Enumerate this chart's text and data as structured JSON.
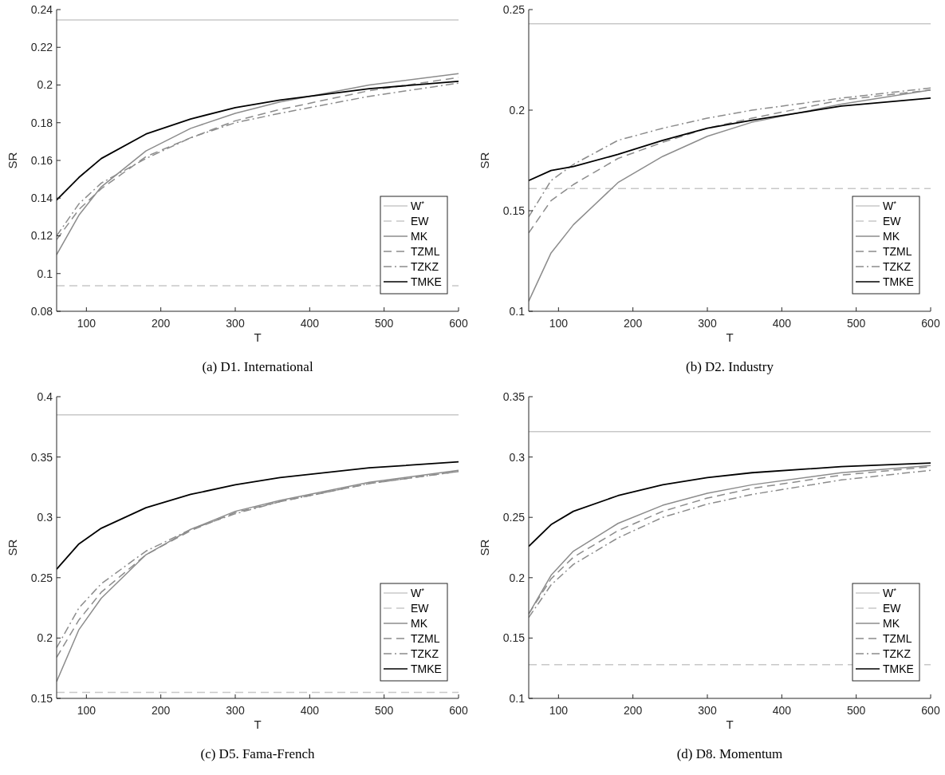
{
  "chart_data": [
    {
      "type": "line",
      "title": "(a) D1. International",
      "xlabel": "T",
      "ylabel": "SR",
      "xlim": [
        60,
        600
      ],
      "xticks": [
        100,
        200,
        300,
        400,
        500,
        600
      ],
      "ylim": [
        0.08,
        0.24
      ],
      "yticks": [
        0.08,
        0.1,
        0.12,
        0.14,
        0.16,
        0.18,
        0.2,
        0.22,
        0.24
      ],
      "grid": false,
      "legend": "bottom right",
      "x": [
        60,
        90,
        120,
        180,
        240,
        300,
        360,
        480,
        600
      ],
      "series": [
        {
          "name": "W$^{*}$",
          "color": "#c8c8c8",
          "line_style": "solid",
          "values": [
            0.2345,
            0.2345,
            0.2345,
            0.2345,
            0.2345,
            0.2345,
            0.2345,
            0.2345,
            0.2345
          ]
        },
        {
          "name": "EW",
          "color": "#c8c8c8",
          "line_style": "dashed",
          "values": [
            0.0935,
            0.0935,
            0.0935,
            0.0935,
            0.0935,
            0.0935,
            0.0935,
            0.0935,
            0.0935
          ]
        },
        {
          "name": "MK",
          "color": "#8c8c8c",
          "line_style": "solid",
          "values": [
            0.11,
            0.131,
            0.146,
            0.165,
            0.177,
            0.185,
            0.191,
            0.2,
            0.206
          ]
        },
        {
          "name": "TZML",
          "color": "#8c8c8c",
          "line_style": "dashed",
          "values": [
            0.118,
            0.134,
            0.145,
            0.162,
            0.172,
            0.181,
            0.187,
            0.197,
            0.204
          ]
        },
        {
          "name": "TZKZ",
          "color": "#8c8c8c",
          "line_style": "dashdot",
          "values": [
            0.12,
            0.137,
            0.148,
            0.161,
            0.172,
            0.18,
            0.185,
            0.194,
            0.201
          ]
        },
        {
          "name": "TMKE",
          "color": "#000000",
          "line_style": "solid",
          "values": [
            0.139,
            0.151,
            0.161,
            0.174,
            0.182,
            0.188,
            0.192,
            0.198,
            0.202
          ]
        }
      ]
    },
    {
      "type": "line",
      "title": "(b) D2. Industry",
      "xlabel": "T",
      "ylabel": "SR",
      "xlim": [
        60,
        600
      ],
      "xticks": [
        100,
        200,
        300,
        400,
        500,
        600
      ],
      "ylim": [
        0.1,
        0.25
      ],
      "yticks": [
        0.1,
        0.15,
        0.2,
        0.25
      ],
      "grid": false,
      "legend": "bottom right",
      "x": [
        60,
        90,
        120,
        180,
        240,
        300,
        360,
        480,
        600
      ],
      "series": [
        {
          "name": "W$^{*}$",
          "color": "#c8c8c8",
          "line_style": "solid",
          "values": [
            0.243,
            0.243,
            0.243,
            0.243,
            0.243,
            0.243,
            0.243,
            0.243,
            0.243
          ]
        },
        {
          "name": "EW",
          "color": "#c8c8c8",
          "line_style": "dashed",
          "values": [
            0.161,
            0.161,
            0.161,
            0.161,
            0.161,
            0.161,
            0.161,
            0.161,
            0.161
          ]
        },
        {
          "name": "MK",
          "color": "#8c8c8c",
          "line_style": "solid",
          "values": [
            0.105,
            0.129,
            0.143,
            0.164,
            0.177,
            0.187,
            0.194,
            0.203,
            0.21
          ]
        },
        {
          "name": "TZML",
          "color": "#8c8c8c",
          "line_style": "dashed",
          "values": [
            0.139,
            0.155,
            0.163,
            0.176,
            0.184,
            0.191,
            0.196,
            0.205,
            0.21
          ]
        },
        {
          "name": "TZKZ",
          "color": "#8c8c8c",
          "line_style": "dashdot",
          "values": [
            0.147,
            0.165,
            0.173,
            0.185,
            0.191,
            0.196,
            0.2,
            0.206,
            0.211
          ]
        },
        {
          "name": "TMKE",
          "color": "#000000",
          "line_style": "solid",
          "values": [
            0.165,
            0.17,
            0.172,
            0.178,
            0.185,
            0.191,
            0.195,
            0.202,
            0.206
          ]
        }
      ]
    },
    {
      "type": "line",
      "title": "(c) D5. Fama-French",
      "xlabel": "T",
      "ylabel": "SR",
      "xlim": [
        60,
        600
      ],
      "xticks": [
        100,
        200,
        300,
        400,
        500,
        600
      ],
      "ylim": [
        0.15,
        0.4
      ],
      "yticks": [
        0.15,
        0.2,
        0.25,
        0.3,
        0.35,
        0.4
      ],
      "grid": false,
      "legend": "bottom right",
      "x": [
        60,
        90,
        120,
        180,
        240,
        300,
        360,
        480,
        600
      ],
      "series": [
        {
          "name": "W$^{*}$",
          "color": "#c8c8c8",
          "line_style": "solid",
          "values": [
            0.385,
            0.385,
            0.385,
            0.385,
            0.385,
            0.385,
            0.385,
            0.385,
            0.385
          ]
        },
        {
          "name": "EW",
          "color": "#c8c8c8",
          "line_style": "dashed",
          "values": [
            0.155,
            0.155,
            0.155,
            0.155,
            0.155,
            0.155,
            0.155,
            0.155,
            0.155
          ]
        },
        {
          "name": "MK",
          "color": "#8c8c8c",
          "line_style": "solid",
          "values": [
            0.164,
            0.207,
            0.233,
            0.269,
            0.29,
            0.305,
            0.314,
            0.329,
            0.339
          ]
        },
        {
          "name": "TZML",
          "color": "#8c8c8c",
          "line_style": "dashed",
          "values": [
            0.184,
            0.215,
            0.238,
            0.269,
            0.289,
            0.304,
            0.313,
            0.328,
            0.338
          ]
        },
        {
          "name": "TZKZ",
          "color": "#8c8c8c",
          "line_style": "dashdot",
          "values": [
            0.192,
            0.225,
            0.245,
            0.272,
            0.29,
            0.303,
            0.313,
            0.328,
            0.338
          ]
        },
        {
          "name": "TMKE",
          "color": "#000000",
          "line_style": "solid",
          "values": [
            0.257,
            0.278,
            0.291,
            0.308,
            0.319,
            0.327,
            0.333,
            0.341,
            0.346
          ]
        }
      ]
    },
    {
      "type": "line",
      "title": "(d) D8. Momentum",
      "xlabel": "T",
      "ylabel": "SR",
      "xlim": [
        60,
        600
      ],
      "xticks": [
        100,
        200,
        300,
        400,
        500,
        600
      ],
      "ylim": [
        0.1,
        0.35
      ],
      "yticks": [
        0.1,
        0.15,
        0.2,
        0.25,
        0.3,
        0.35
      ],
      "grid": false,
      "legend": "bottom right",
      "x": [
        60,
        90,
        120,
        180,
        240,
        300,
        360,
        480,
        600
      ],
      "series": [
        {
          "name": "W$^{*}$",
          "color": "#c8c8c8",
          "line_style": "solid",
          "values": [
            0.321,
            0.321,
            0.321,
            0.321,
            0.321,
            0.321,
            0.321,
            0.321,
            0.321
          ]
        },
        {
          "name": "EW",
          "color": "#c8c8c8",
          "line_style": "dashed",
          "values": [
            0.128,
            0.128,
            0.128,
            0.128,
            0.128,
            0.128,
            0.128,
            0.128,
            0.128
          ]
        },
        {
          "name": "MK",
          "color": "#8c8c8c",
          "line_style": "solid",
          "values": [
            0.17,
            0.202,
            0.222,
            0.245,
            0.26,
            0.27,
            0.277,
            0.287,
            0.293
          ]
        },
        {
          "name": "TZML",
          "color": "#8c8c8c",
          "line_style": "dashed",
          "values": [
            0.17,
            0.199,
            0.217,
            0.239,
            0.255,
            0.266,
            0.274,
            0.285,
            0.292
          ]
        },
        {
          "name": "TZKZ",
          "color": "#8c8c8c",
          "line_style": "dashdot",
          "values": [
            0.167,
            0.194,
            0.211,
            0.233,
            0.25,
            0.261,
            0.269,
            0.281,
            0.289
          ]
        },
        {
          "name": "TMKE",
          "color": "#000000",
          "line_style": "solid",
          "values": [
            0.226,
            0.244,
            0.255,
            0.268,
            0.277,
            0.283,
            0.287,
            0.292,
            0.295
          ]
        }
      ]
    }
  ]
}
